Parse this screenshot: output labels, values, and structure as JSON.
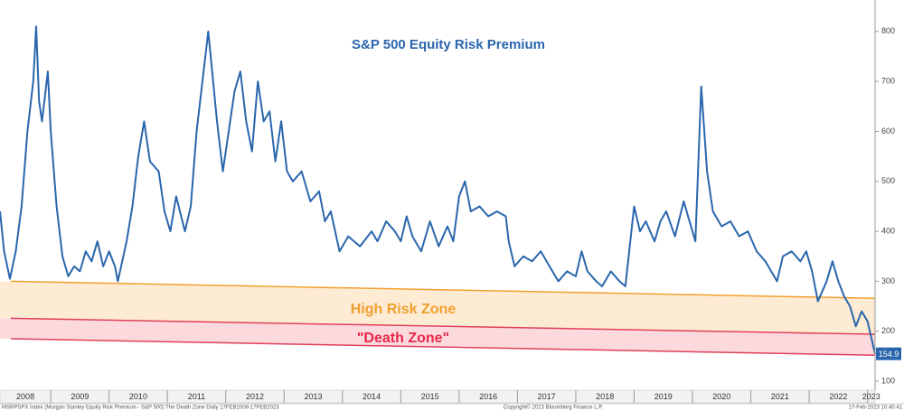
{
  "chart_data": {
    "type": "line",
    "title": "S&P 500 Equity Risk Premium",
    "footer_left": "MSRPSPX Index (Morgan Stanley Equity Risk Premium - S&P 500) The Death Zone  Daily 17FEB2008-17FEB2023",
    "footer_center": "Copyright© 2023 Bloomberg Finance L.P.",
    "footer_right": "17-Feb-2023 10:40:41",
    "xlim": [
      2008.13,
      2023.13
    ],
    "xticks": [
      2008,
      2009,
      2010,
      2011,
      2012,
      2013,
      2014,
      2015,
      2016,
      2017,
      2018,
      2019,
      2020,
      2021,
      2022,
      2023
    ],
    "ylim": [
      82,
      863
    ],
    "yticks": [
      100,
      200,
      300,
      400,
      500,
      600,
      700,
      800
    ],
    "x": [
      2008.13,
      2008.2,
      2008.3,
      2008.4,
      2008.5,
      2008.6,
      2008.7,
      2008.75,
      2008.8,
      2008.85,
      2008.95,
      2009.0,
      2009.1,
      2009.2,
      2009.3,
      2009.4,
      2009.5,
      2009.6,
      2009.7,
      2009.8,
      2009.9,
      2010.0,
      2010.1,
      2010.15,
      2010.3,
      2010.4,
      2010.5,
      2010.6,
      2010.7,
      2010.85,
      2010.95,
      2011.05,
      2011.15,
      2011.3,
      2011.4,
      2011.5,
      2011.6,
      2011.7,
      2011.75,
      2011.85,
      2011.95,
      2012.05,
      2012.15,
      2012.25,
      2012.35,
      2012.45,
      2012.55,
      2012.65,
      2012.75,
      2012.85,
      2012.95,
      2013.05,
      2013.15,
      2013.3,
      2013.45,
      2013.6,
      2013.7,
      2013.8,
      2013.95,
      2014.1,
      2014.3,
      2014.5,
      2014.6,
      2014.75,
      2014.9,
      2015.0,
      2015.1,
      2015.2,
      2015.35,
      2015.5,
      2015.65,
      2015.8,
      2015.9,
      2016.0,
      2016.1,
      2016.2,
      2016.35,
      2016.5,
      2016.65,
      2016.8,
      2016.85,
      2016.95,
      2017.1,
      2017.25,
      2017.4,
      2017.55,
      2017.7,
      2017.85,
      2018.0,
      2018.1,
      2018.2,
      2018.35,
      2018.45,
      2018.6,
      2018.75,
      2018.85,
      2019.0,
      2019.1,
      2019.2,
      2019.35,
      2019.45,
      2019.55,
      2019.7,
      2019.85,
      2019.95,
      2020.05,
      2020.15,
      2020.25,
      2020.35,
      2020.5,
      2020.65,
      2020.8,
      2020.95,
      2021.1,
      2021.25,
      2021.35,
      2021.45,
      2021.55,
      2021.7,
      2021.85,
      2021.95,
      2022.05,
      2022.15,
      2022.3,
      2022.4,
      2022.5,
      2022.6,
      2022.7,
      2022.8,
      2022.9,
      2023.0,
      2023.13
    ],
    "series": [
      {
        "name": "MSRPSPX Index",
        "color": "#2a66ad",
        "values": [
          440,
          360,
          305,
          360,
          450,
          600,
          700,
          810,
          660,
          620,
          720,
          600,
          450,
          350,
          310,
          330,
          320,
          360,
          340,
          380,
          330,
          360,
          330,
          300,
          380,
          450,
          550,
          620,
          540,
          520,
          440,
          400,
          470,
          400,
          450,
          600,
          700,
          800,
          740,
          620,
          520,
          600,
          680,
          720,
          620,
          560,
          700,
          620,
          640,
          540,
          620,
          520,
          500,
          520,
          460,
          480,
          420,
          440,
          360,
          390,
          370,
          400,
          380,
          420,
          400,
          380,
          430,
          390,
          360,
          420,
          370,
          410,
          380,
          470,
          500,
          440,
          450,
          430,
          440,
          430,
          380,
          330,
          350,
          340,
          360,
          330,
          300,
          320,
          310,
          360,
          320,
          300,
          290,
          320,
          300,
          290,
          450,
          400,
          420,
          380,
          420,
          440,
          390,
          460,
          420,
          380,
          690,
          520,
          440,
          410,
          420,
          390,
          400,
          360,
          340,
          320,
          300,
          350,
          360,
          340,
          360,
          320,
          260,
          300,
          340,
          300,
          270,
          250,
          210,
          240,
          220,
          154.9
        ],
        "value_labels": {
          "131": "154.9"
        }
      }
    ],
    "bands": [
      {
        "label": "High Risk Zone",
        "color": "#f0a030",
        "fill": "#fdebd3",
        "label_color": "#f0a030",
        "upper": [
          300,
          266
        ],
        "lower": [
          226,
          194
        ]
      },
      {
        "label": "\"Death Zone\"",
        "color": "#e0405a",
        "fill": "#fbd9dd",
        "label_color": "#e8284a",
        "upper": [
          226,
          194
        ],
        "lower": [
          185,
          152
        ]
      }
    ]
  }
}
